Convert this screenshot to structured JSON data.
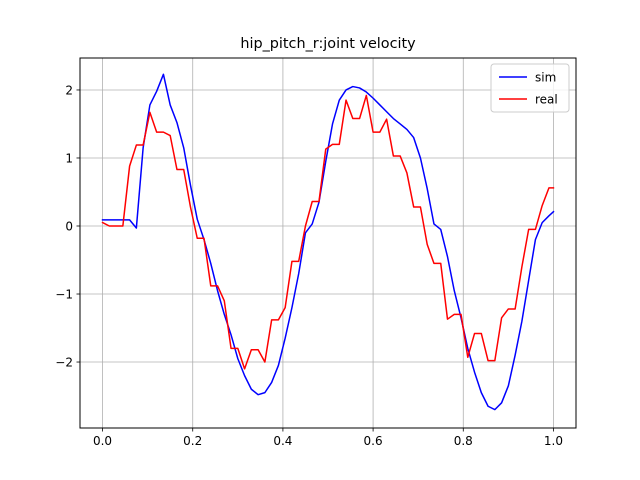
{
  "chart_data": {
    "type": "line",
    "title": "hip_pitch_r:joint velocity",
    "xlabel": "",
    "ylabel": "",
    "xlim": [
      -0.05,
      1.05
    ],
    "ylim": [
      -2.97,
      2.47
    ],
    "x_ticks": [
      0.0,
      0.2,
      0.4,
      0.6,
      0.8,
      1.0
    ],
    "x_tick_labels": [
      "0.0",
      "0.2",
      "0.4",
      "0.6",
      "0.8",
      "1.0"
    ],
    "y_ticks": [
      -2,
      -1,
      0,
      1,
      2
    ],
    "y_tick_labels": [
      "−2",
      "−1",
      "0",
      "1",
      "2"
    ],
    "grid": true,
    "legend_position": "top-right",
    "series": [
      {
        "name": "sim",
        "color": "#0000ff",
        "x": [
          0.0,
          0.015,
          0.03,
          0.045,
          0.06,
          0.075,
          0.09,
          0.105,
          0.12,
          0.135,
          0.15,
          0.165,
          0.18,
          0.195,
          0.21,
          0.225,
          0.24,
          0.255,
          0.27,
          0.285,
          0.3,
          0.315,
          0.33,
          0.345,
          0.36,
          0.375,
          0.39,
          0.405,
          0.42,
          0.435,
          0.45,
          0.465,
          0.48,
          0.495,
          0.51,
          0.525,
          0.54,
          0.555,
          0.57,
          0.585,
          0.6,
          0.615,
          0.63,
          0.645,
          0.66,
          0.675,
          0.69,
          0.705,
          0.72,
          0.735,
          0.75,
          0.765,
          0.78,
          0.795,
          0.81,
          0.825,
          0.84,
          0.855,
          0.87,
          0.885,
          0.9,
          0.915,
          0.93,
          0.945,
          0.96,
          0.975,
          0.99,
          1.0
        ],
        "values": [
          0.09,
          0.09,
          0.09,
          0.09,
          0.09,
          -0.03,
          1.15,
          1.78,
          1.98,
          2.23,
          1.78,
          1.52,
          1.15,
          0.6,
          0.1,
          -0.2,
          -0.55,
          -0.95,
          -1.3,
          -1.6,
          -1.95,
          -2.2,
          -2.4,
          -2.48,
          -2.45,
          -2.3,
          -2.05,
          -1.65,
          -1.2,
          -0.7,
          -0.1,
          0.03,
          0.35,
          0.95,
          1.5,
          1.85,
          2.0,
          2.05,
          2.03,
          1.97,
          1.88,
          1.78,
          1.68,
          1.58,
          1.5,
          1.42,
          1.3,
          1.0,
          0.55,
          0.03,
          -0.05,
          -0.45,
          -0.95,
          -1.35,
          -1.8,
          -2.15,
          -2.45,
          -2.65,
          -2.7,
          -2.6,
          -2.35,
          -1.9,
          -1.4,
          -0.8,
          -0.2,
          0.05,
          0.15,
          0.21
        ]
      },
      {
        "name": "real",
        "color": "#ff0000",
        "x": [
          0.0,
          0.015,
          0.03,
          0.045,
          0.06,
          0.075,
          0.09,
          0.105,
          0.12,
          0.135,
          0.15,
          0.165,
          0.18,
          0.195,
          0.21,
          0.225,
          0.24,
          0.255,
          0.27,
          0.285,
          0.3,
          0.315,
          0.33,
          0.345,
          0.36,
          0.375,
          0.39,
          0.405,
          0.42,
          0.435,
          0.45,
          0.465,
          0.48,
          0.495,
          0.51,
          0.525,
          0.54,
          0.555,
          0.57,
          0.585,
          0.6,
          0.615,
          0.63,
          0.645,
          0.66,
          0.675,
          0.69,
          0.705,
          0.72,
          0.735,
          0.75,
          0.765,
          0.78,
          0.795,
          0.81,
          0.825,
          0.84,
          0.855,
          0.87,
          0.885,
          0.9,
          0.915,
          0.93,
          0.945,
          0.96,
          0.975,
          0.99,
          1.0
        ],
        "values": [
          0.05,
          0.0,
          0.0,
          0.0,
          0.88,
          1.19,
          1.19,
          1.67,
          1.38,
          1.38,
          1.33,
          0.83,
          0.83,
          0.28,
          -0.18,
          -0.18,
          -0.88,
          -0.88,
          -1.1,
          -1.8,
          -1.8,
          -2.1,
          -1.82,
          -1.82,
          -2.0,
          -1.38,
          -1.38,
          -1.2,
          -0.52,
          -0.52,
          0.0,
          0.36,
          0.36,
          1.13,
          1.2,
          1.2,
          1.85,
          1.58,
          1.58,
          1.92,
          1.38,
          1.38,
          1.57,
          1.03,
          1.03,
          0.78,
          0.28,
          0.28,
          -0.27,
          -0.55,
          -0.55,
          -1.37,
          -1.3,
          -1.3,
          -1.93,
          -1.58,
          -1.58,
          -1.98,
          -1.98,
          -1.35,
          -1.22,
          -1.22,
          -0.6,
          -0.05,
          -0.05,
          0.3,
          0.56,
          0.56
        ]
      }
    ]
  }
}
